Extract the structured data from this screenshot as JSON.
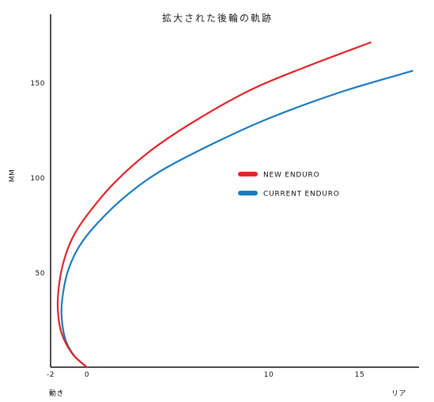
{
  "chart_data": {
    "type": "line",
    "title": "拡大された後輪の軌跡",
    "ylabel": "MM",
    "xlabel_left": "動き",
    "xlabel_right": "リア",
    "xlim": [
      -2,
      18
    ],
    "ylim": [
      0,
      185
    ],
    "xticks": [
      -2,
      0,
      10,
      15
    ],
    "yticks": [
      50,
      100,
      150
    ],
    "grid": false,
    "legend_position": "center-right",
    "series": [
      {
        "name": "NEW ENDURO",
        "color": "#e0262b",
        "x": [
          0,
          -0.8,
          -1.4,
          -1.6,
          -1.55,
          -1.3,
          -0.8,
          0,
          1.5,
          3.5,
          6,
          9,
          12,
          15.6
        ],
        "y": [
          0,
          7,
          18,
          30,
          42,
          55,
          68,
          80,
          97,
          114,
          130,
          146,
          158,
          171
        ]
      },
      {
        "name": "CURRENT ENDURO",
        "color": "#1a7bbf",
        "x": [
          0,
          -0.7,
          -1.2,
          -1.4,
          -1.3,
          -1.0,
          -0.4,
          0.5,
          2,
          4,
          7,
          10,
          14,
          17.9
        ],
        "y": [
          0,
          6,
          15,
          28,
          40,
          52,
          64,
          75,
          89,
          103,
          118,
          131,
          145,
          156
        ]
      }
    ]
  }
}
